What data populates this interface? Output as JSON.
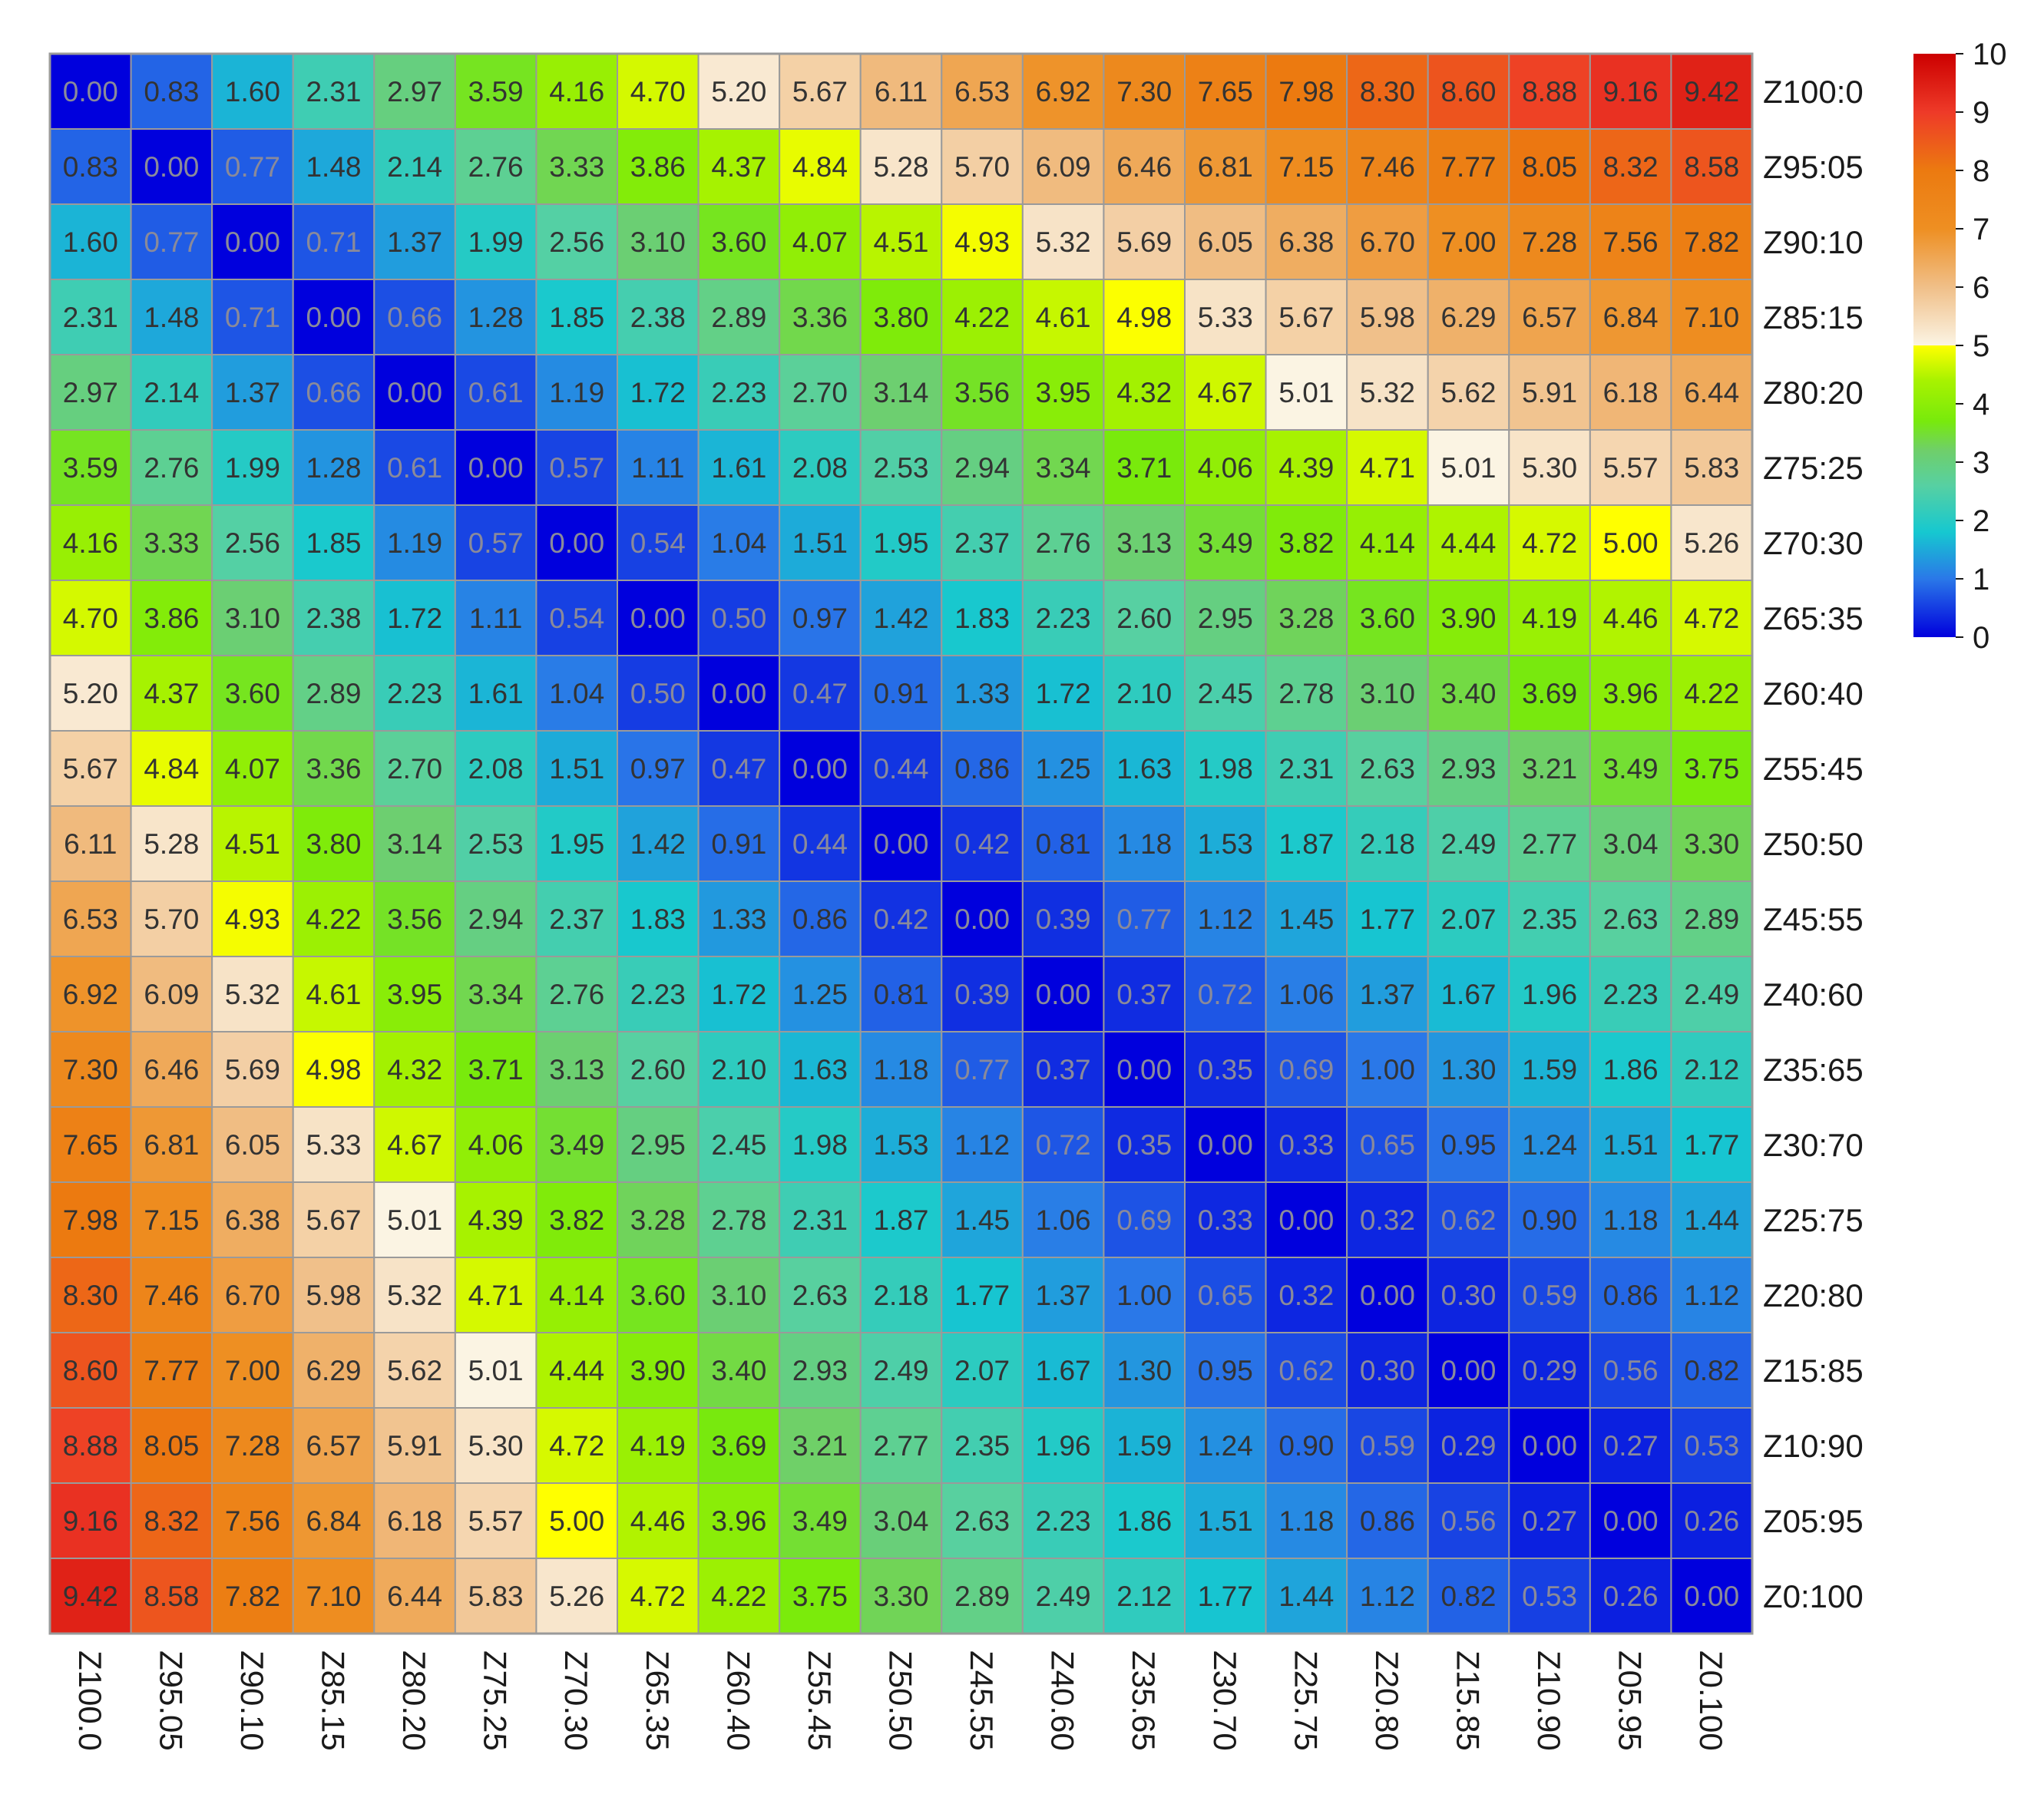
{
  "chart_data": {
    "type": "heatmap",
    "title": "",
    "xlabel": "",
    "ylabel": "",
    "row_labels": [
      "Z100:0",
      "Z95:05",
      "Z90:10",
      "Z85:15",
      "Z80:20",
      "Z75:25",
      "Z70:30",
      "Z65:35",
      "Z60:40",
      "Z55:45",
      "Z50:50",
      "Z45:55",
      "Z40:60",
      "Z35:65",
      "Z30:70",
      "Z25:75",
      "Z20:80",
      "Z15:85",
      "Z10:90",
      "Z05:95",
      "Z0:100"
    ],
    "col_labels": [
      "Z100.0",
      "Z95.05",
      "Z90.10",
      "Z85.15",
      "Z80.20",
      "Z75.25",
      "Z70.30",
      "Z65.35",
      "Z60.40",
      "Z55.45",
      "Z50.50",
      "Z45.55",
      "Z40.60",
      "Z35.65",
      "Z30.70",
      "Z25.75",
      "Z20.80",
      "Z15.85",
      "Z10.90",
      "Z05.95",
      "Z0.100"
    ],
    "values": [
      [
        0.0,
        0.83,
        1.6,
        2.31,
        2.97,
        3.59,
        4.16,
        4.7,
        5.2,
        5.67,
        6.11,
        6.53,
        6.92,
        7.3,
        7.65,
        7.98,
        8.3,
        8.6,
        8.88,
        9.16,
        9.42
      ],
      [
        0.83,
        0.0,
        0.77,
        1.48,
        2.14,
        2.76,
        3.33,
        3.86,
        4.37,
        4.84,
        5.28,
        5.7,
        6.09,
        6.46,
        6.81,
        7.15,
        7.46,
        7.77,
        8.05,
        8.32,
        8.58
      ],
      [
        1.6,
        0.77,
        0.0,
        0.71,
        1.37,
        1.99,
        2.56,
        3.1,
        3.6,
        4.07,
        4.51,
        4.93,
        5.32,
        5.69,
        6.05,
        6.38,
        6.7,
        7.0,
        7.28,
        7.56,
        7.82
      ],
      [
        2.31,
        1.48,
        0.71,
        0.0,
        0.66,
        1.28,
        1.85,
        2.38,
        2.89,
        3.36,
        3.8,
        4.22,
        4.61,
        4.98,
        5.33,
        5.67,
        5.98,
        6.29,
        6.57,
        6.84,
        7.1
      ],
      [
        2.97,
        2.14,
        1.37,
        0.66,
        0.0,
        0.61,
        1.19,
        1.72,
        2.23,
        2.7,
        3.14,
        3.56,
        3.95,
        4.32,
        4.67,
        5.01,
        5.32,
        5.62,
        5.91,
        6.18,
        6.44
      ],
      [
        3.59,
        2.76,
        1.99,
        1.28,
        0.61,
        0.0,
        0.57,
        1.11,
        1.61,
        2.08,
        2.53,
        2.94,
        3.34,
        3.71,
        4.06,
        4.39,
        4.71,
        5.01,
        5.3,
        5.57,
        5.83
      ],
      [
        4.16,
        3.33,
        2.56,
        1.85,
        1.19,
        0.57,
        0.0,
        0.54,
        1.04,
        1.51,
        1.95,
        2.37,
        2.76,
        3.13,
        3.49,
        3.82,
        4.14,
        4.44,
        4.72,
        5.0,
        5.26
      ],
      [
        4.7,
        3.86,
        3.1,
        2.38,
        1.72,
        1.11,
        0.54,
        0.0,
        0.5,
        0.97,
        1.42,
        1.83,
        2.23,
        2.6,
        2.95,
        3.28,
        3.6,
        3.9,
        4.19,
        4.46,
        4.72
      ],
      [
        5.2,
        4.37,
        3.6,
        2.89,
        2.23,
        1.61,
        1.04,
        0.5,
        0.0,
        0.47,
        0.91,
        1.33,
        1.72,
        2.1,
        2.45,
        2.78,
        3.1,
        3.4,
        3.69,
        3.96,
        4.22
      ],
      [
        5.67,
        4.84,
        4.07,
        3.36,
        2.7,
        2.08,
        1.51,
        0.97,
        0.47,
        0.0,
        0.44,
        0.86,
        1.25,
        1.63,
        1.98,
        2.31,
        2.63,
        2.93,
        3.21,
        3.49,
        3.75
      ],
      [
        6.11,
        5.28,
        4.51,
        3.8,
        3.14,
        2.53,
        1.95,
        1.42,
        0.91,
        0.44,
        0.0,
        0.42,
        0.81,
        1.18,
        1.53,
        1.87,
        2.18,
        2.49,
        2.77,
        3.04,
        3.3
      ],
      [
        6.53,
        5.7,
        4.93,
        4.22,
        3.56,
        2.94,
        2.37,
        1.83,
        1.33,
        0.86,
        0.42,
        0.0,
        0.39,
        0.77,
        1.12,
        1.45,
        1.77,
        2.07,
        2.35,
        2.63,
        2.89
      ],
      [
        6.92,
        6.09,
        5.32,
        4.61,
        3.95,
        3.34,
        2.76,
        2.23,
        1.72,
        1.25,
        0.81,
        0.39,
        0.0,
        0.37,
        0.72,
        1.06,
        1.37,
        1.67,
        1.96,
        2.23,
        2.49
      ],
      [
        7.3,
        6.46,
        5.69,
        4.98,
        4.32,
        3.71,
        3.13,
        2.6,
        2.1,
        1.63,
        1.18,
        0.77,
        0.37,
        0.0,
        0.35,
        0.69,
        1.0,
        1.3,
        1.59,
        1.86,
        2.12
      ],
      [
        7.65,
        6.81,
        6.05,
        5.33,
        4.67,
        4.06,
        3.49,
        2.95,
        2.45,
        1.98,
        1.53,
        1.12,
        0.72,
        0.35,
        0.0,
        0.33,
        0.65,
        0.95,
        1.24,
        1.51,
        1.77
      ],
      [
        7.98,
        7.15,
        6.38,
        5.67,
        5.01,
        4.39,
        3.82,
        3.28,
        2.78,
        2.31,
        1.87,
        1.45,
        1.06,
        0.69,
        0.33,
        0.0,
        0.32,
        0.62,
        0.9,
        1.18,
        1.44
      ],
      [
        8.3,
        7.46,
        6.7,
        5.98,
        5.32,
        4.71,
        4.14,
        3.6,
        3.1,
        2.63,
        2.18,
        1.77,
        1.37,
        1.0,
        0.65,
        0.32,
        0.0,
        0.3,
        0.59,
        0.86,
        1.12
      ],
      [
        8.6,
        7.77,
        7.0,
        6.29,
        5.62,
        5.01,
        4.44,
        3.9,
        3.4,
        2.93,
        2.49,
        2.07,
        1.67,
        1.3,
        0.95,
        0.62,
        0.3,
        0.0,
        0.29,
        0.56,
        0.82
      ],
      [
        8.88,
        8.05,
        7.28,
        6.57,
        5.91,
        5.3,
        4.72,
        4.19,
        3.69,
        3.21,
        2.77,
        2.35,
        1.96,
        1.59,
        1.24,
        0.9,
        0.59,
        0.29,
        0.0,
        0.27,
        0.53
      ],
      [
        9.16,
        8.32,
        7.56,
        6.84,
        6.18,
        5.57,
        5.0,
        4.46,
        3.96,
        3.49,
        3.04,
        2.63,
        2.23,
        1.86,
        1.51,
        1.18,
        0.86,
        0.56,
        0.27,
        0.0,
        0.26
      ],
      [
        9.42,
        8.58,
        7.82,
        7.1,
        6.44,
        5.83,
        5.26,
        4.72,
        4.22,
        3.75,
        3.3,
        2.89,
        2.49,
        2.12,
        1.77,
        1.44,
        1.12,
        0.82,
        0.53,
        0.26,
        0.0
      ]
    ],
    "value_format": "2 decimals",
    "colorbar": {
      "range": [
        0,
        10
      ],
      "ticks": [
        "0",
        "1",
        "2",
        "3",
        "4",
        "5",
        "6",
        "7",
        "8",
        "9",
        "10"
      ],
      "colormap": [
        {
          "v": 0,
          "color": "#0000dd"
        },
        {
          "v": 1,
          "color": "#2a78e8"
        },
        {
          "v": 1.8,
          "color": "#16c8d0"
        },
        {
          "v": 2.6,
          "color": "#57d0a2"
        },
        {
          "v": 3.2,
          "color": "#6fcf6a"
        },
        {
          "v": 3.7,
          "color": "#78ea0c"
        },
        {
          "v": 4.4,
          "color": "#a8f200"
        },
        {
          "v": 5.0,
          "color": "#ffff00"
        },
        {
          "v": 5.001,
          "color": "#fbf4e4"
        },
        {
          "v": 6,
          "color": "#f0bf88"
        },
        {
          "v": 7,
          "color": "#ee8f22"
        },
        {
          "v": 8,
          "color": "#ec7a10"
        },
        {
          "v": 9,
          "color": "#ee3a28"
        },
        {
          "v": 10,
          "color": "#cc0000"
        }
      ],
      "placement": "right"
    },
    "grid": true,
    "legend": "colorbar at top-right"
  }
}
